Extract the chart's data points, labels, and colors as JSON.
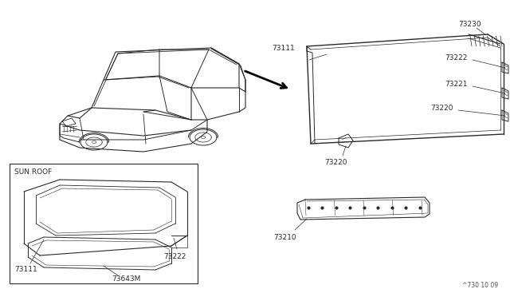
{
  "background_color": "#ffffff",
  "figure_width": 6.4,
  "figure_height": 3.72,
  "dpi": 100,
  "text_color": "#2a2a2a",
  "line_color": "#2a2a2a",
  "watermark": "^730 10 09"
}
